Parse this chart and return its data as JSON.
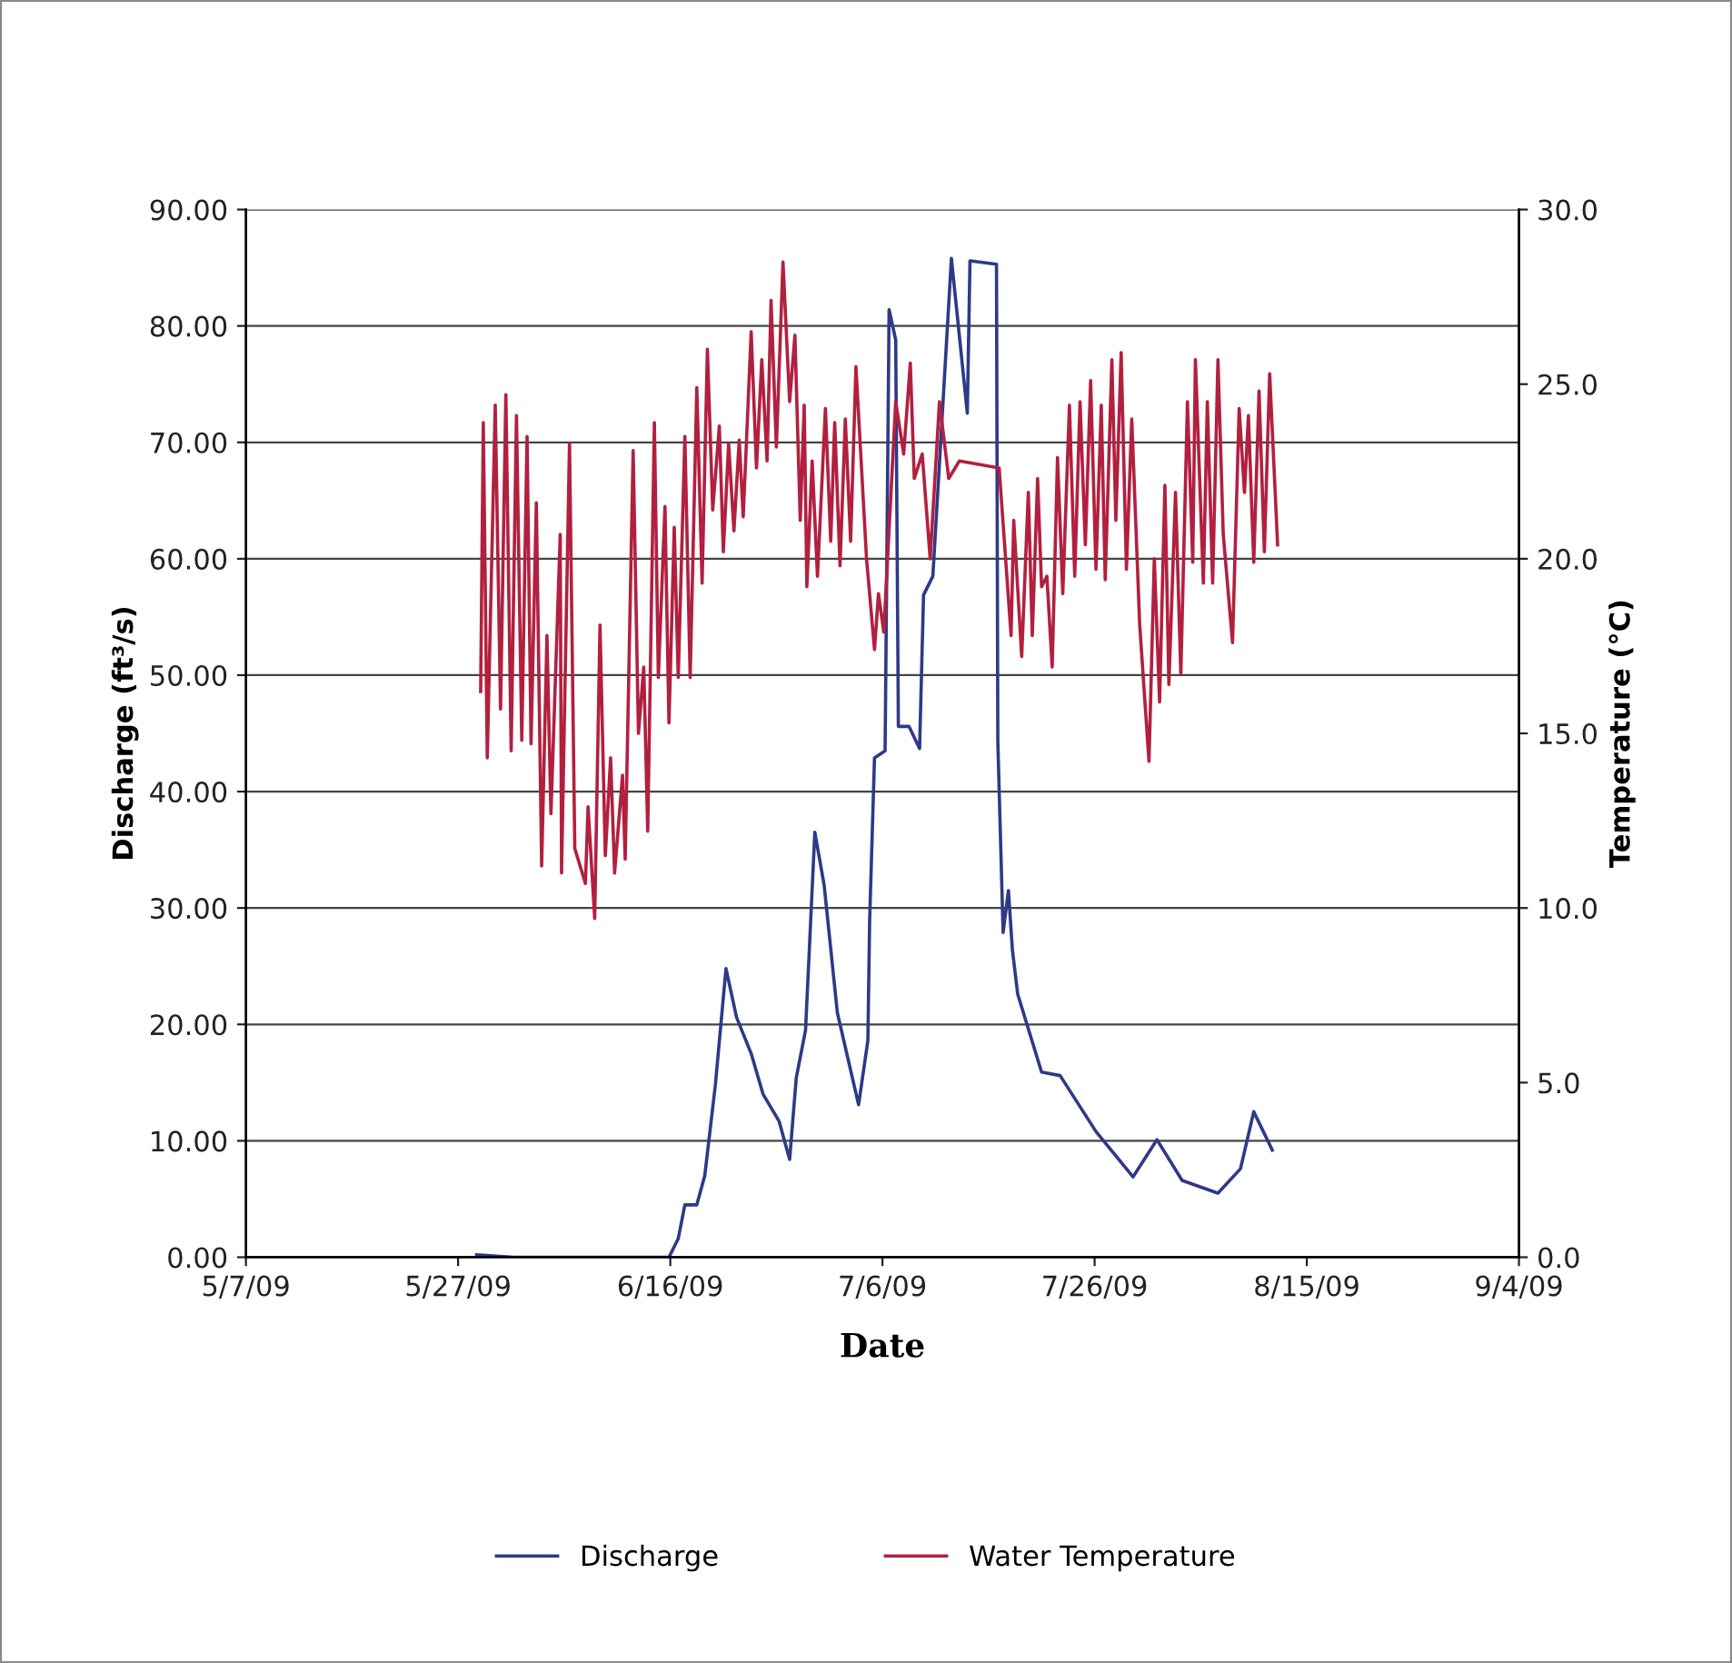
{
  "chart_data": {
    "type": "line",
    "xlabel": "Date",
    "ylabel": "Discharge (ft³/s)",
    "y2label": "Temperature (°C)",
    "xlim": [
      "2009-05-07",
      "2009-09-04"
    ],
    "xticks": [
      {
        "value": "2009-05-07",
        "label": "5/7/09"
      },
      {
        "value": "2009-05-27",
        "label": "5/27/09"
      },
      {
        "value": "2009-06-16",
        "label": "6/16/09"
      },
      {
        "value": "2009-07-06",
        "label": "7/6/09"
      },
      {
        "value": "2009-07-26",
        "label": "7/26/09"
      },
      {
        "value": "2009-08-15",
        "label": "8/15/09"
      },
      {
        "value": "2009-09-04",
        "label": "9/4/09"
      }
    ],
    "ylim": [
      0,
      90
    ],
    "yticks": [
      {
        "value": 0,
        "label": "0.00"
      },
      {
        "value": 10,
        "label": "10.00"
      },
      {
        "value": 20,
        "label": "20.00"
      },
      {
        "value": 30,
        "label": "30.00"
      },
      {
        "value": 40,
        "label": "40.00"
      },
      {
        "value": 50,
        "label": "50.00"
      },
      {
        "value": 60,
        "label": "60.00"
      },
      {
        "value": 70,
        "label": "70.00"
      },
      {
        "value": 80,
        "label": "80.00"
      },
      {
        "value": 90,
        "label": "90.00"
      }
    ],
    "y2lim": [
      0,
      30
    ],
    "y2ticks": [
      {
        "value": 0,
        "label": "0.0"
      },
      {
        "value": 5,
        "label": "5.0"
      },
      {
        "value": 10,
        "label": "10.0"
      },
      {
        "value": 15,
        "label": "15.0"
      },
      {
        "value": 20,
        "label": "20.0"
      },
      {
        "value": 25,
        "label": "25.0"
      },
      {
        "value": 30,
        "label": "30.0"
      }
    ],
    "grid": "y",
    "legend": "bottom",
    "marker": "none",
    "line_style": "solid",
    "series": [
      {
        "name": "Discharge",
        "color": "#2e3a87",
        "x": [
          "2009-05-28T18:00",
          "2009-06-01T06:00",
          "2009-06-15T21:00",
          "2009-06-16T18:00",
          "2009-06-17T09:00",
          "2009-06-18T12:00",
          "2009-06-19T06:00",
          "2009-06-20T06:00",
          "2009-06-21T06:00",
          "2009-06-22T06:00",
          "2009-06-23T15:00",
          "2009-06-24T18:00",
          "2009-06-26T06:00",
          "2009-06-27T06:00",
          "2009-06-27T21:00",
          "2009-06-28T18:00",
          "2009-06-29T15:00",
          "2009-06-30T12:00",
          "2009-07-01T18:00",
          "2009-07-03T18:00",
          "2009-07-04T15:00",
          "2009-07-04T19:00",
          "2009-07-05T06:00",
          "2009-07-06T06:00",
          "2009-07-06T15:00",
          "2009-07-07T06:00",
          "2009-07-07T12:00",
          "2009-07-08T12:00",
          "2009-07-09T12:00",
          "2009-07-09T21:00",
          "2009-07-10T18:00",
          "2009-07-12T12:00",
          "2009-07-14T00:00",
          "2009-07-14T06:00",
          "2009-07-16T18:00",
          "2009-07-16T21:00",
          "2009-07-17T09:00",
          "2009-07-17T21:00",
          "2009-07-18T06:00",
          "2009-07-18T18:00",
          "2009-07-21T00:00",
          "2009-07-22T18:00",
          "2009-07-26T03:00",
          "2009-07-29T15:00",
          "2009-07-31T21:00",
          "2009-08-03T06:00",
          "2009-08-06T15:00",
          "2009-08-08T18:00",
          "2009-08-10T00:00",
          "2009-08-11T18:00"
        ],
        "values": [
          0.2,
          0,
          0,
          1.6,
          4.5,
          4.5,
          7.0,
          14.8,
          24.8,
          20.6,
          17.5,
          14.0,
          11.7,
          8.4,
          15.4,
          19.5,
          36.5,
          32,
          21,
          13.1,
          18.6,
          28.9,
          42.9,
          43.5,
          81.4,
          78.8,
          45.6,
          45.6,
          43.7,
          56.9,
          58.5,
          85.8,
          72.5,
          85.6,
          85.3,
          44.3,
          27.9,
          31.5,
          26.4,
          22.6,
          15.9,
          15.6,
          10.8,
          6.9,
          10.1,
          6.6,
          5.5,
          7.6,
          12.5,
          9.2
        ]
      },
      {
        "name": "Water Temperature",
        "color": "#b22040",
        "axis": "y2",
        "x": [
          "2009-05-29T03:00",
          "2009-05-29T09:00",
          "2009-05-29T18:00",
          "2009-05-30T12:00",
          "2009-05-31T00:00",
          "2009-05-31T12:00",
          "2009-06-01T00:00",
          "2009-06-01T12:00",
          "2009-06-02T00:00",
          "2009-06-02T12:00",
          "2009-06-02T21:00",
          "2009-06-03T09:00",
          "2009-06-03T21:00",
          "2009-06-04T09:00",
          "2009-06-04T18:00",
          "2009-06-05T15:00",
          "2009-06-05T18:00",
          "2009-06-06T12:00",
          "2009-06-07T00:00",
          "2009-06-08T00:00",
          "2009-06-08T06:00",
          "2009-06-08T21:00",
          "2009-06-09T09:00",
          "2009-06-09T21:00",
          "2009-06-10T09:00",
          "2009-06-10T18:00",
          "2009-06-11T12:00",
          "2009-06-11T18:00",
          "2009-06-12T12:00",
          "2009-06-13T00:00",
          "2009-06-13T12:00",
          "2009-06-13T21:00",
          "2009-06-14T12:00",
          "2009-06-14T21:00",
          "2009-06-15T12:00",
          "2009-06-15T21:00",
          "2009-06-16T09:00",
          "2009-06-16T18:00",
          "2009-06-17T09:00",
          "2009-06-17T21:00",
          "2009-06-18T12:00",
          "2009-06-19T00:00",
          "2009-06-19T12:00",
          "2009-06-20T00:00",
          "2009-06-20T15:00",
          "2009-06-21T00:00",
          "2009-06-21T12:00",
          "2009-06-22T00:00",
          "2009-06-22T12:00",
          "2009-06-22T21:00",
          "2009-06-23T15:00",
          "2009-06-24T03:00",
          "2009-06-24T15:00",
          "2009-06-25T03:00",
          "2009-06-25T12:00",
          "2009-06-26T00:00",
          "2009-06-26T15:00",
          "2009-06-27T06:00",
          "2009-06-27T18:00",
          "2009-06-28T06:00",
          "2009-06-28T15:00",
          "2009-06-28T21:00",
          "2009-06-29T09:00",
          "2009-06-29T21:00",
          "2009-06-30T15:00",
          "2009-07-01T03:00",
          "2009-07-01T12:00",
          "2009-07-02T00:00",
          "2009-07-02T12:00",
          "2009-07-03T00:00",
          "2009-07-03T12:00",
          "2009-07-04T12:00",
          "2009-07-05T06:00",
          "2009-07-05T15:00",
          "2009-07-06T03:00",
          "2009-07-07T06:00",
          "2009-07-08T00:00",
          "2009-07-08T15:00",
          "2009-07-09T00:00",
          "2009-07-09T18:00",
          "2009-07-10T12:00",
          "2009-07-11T09:00",
          "2009-07-12T06:00",
          "2009-07-13T06:00",
          "2009-07-17T00:00",
          "2009-07-18T03:00",
          "2009-07-18T09:00",
          "2009-07-19T03:00",
          "2009-07-19T18:00",
          "2009-07-20T03:00",
          "2009-07-20T15:00",
          "2009-07-21T00:00",
          "2009-07-21T12:00",
          "2009-07-22T00:00",
          "2009-07-22T12:00",
          "2009-07-23T00:00",
          "2009-07-23T15:00",
          "2009-07-24T03:00",
          "2009-07-24T15:00",
          "2009-07-25T03:00",
          "2009-07-25T15:00",
          "2009-07-26T03:00",
          "2009-07-26T15:00",
          "2009-07-27T00:00",
          "2009-07-27T15:00",
          "2009-07-28T00:00",
          "2009-07-28T12:00",
          "2009-07-29T00:00",
          "2009-07-29T12:00",
          "2009-07-30T06:00",
          "2009-07-31T03:00",
          "2009-07-31T15:00",
          "2009-08-01T03:00",
          "2009-08-01T15:00",
          "2009-08-02T00:00",
          "2009-08-02T15:00",
          "2009-08-03T03:00",
          "2009-08-03T18:00",
          "2009-08-04T06:00",
          "2009-08-04T12:00",
          "2009-08-05T06:00",
          "2009-08-05T15:00",
          "2009-08-06T03:00",
          "2009-08-06T15:00",
          "2009-08-07T03:00",
          "2009-08-08T00:00",
          "2009-08-08T15:00",
          "2009-08-09T03:00",
          "2009-08-09T12:00",
          "2009-08-10T00:00",
          "2009-08-10T12:00",
          "2009-08-11T00:00",
          "2009-08-11T12:00",
          "2009-08-12T06:00"
        ],
        "values": [
          16.2,
          23.9,
          14.3,
          24.4,
          15.7,
          24.7,
          14.5,
          24.1,
          14.8,
          23.5,
          14.7,
          21.6,
          11.2,
          17.8,
          12.7,
          20.7,
          11.0,
          23.3,
          11.7,
          10.7,
          12.9,
          9.7,
          18.1,
          11.5,
          14.3,
          11.0,
          13.8,
          11.4,
          23.1,
          15.0,
          16.9,
          12.2,
          23.9,
          16.6,
          21.5,
          15.3,
          20.9,
          16.6,
          23.5,
          16.6,
          24.9,
          19.3,
          26.0,
          21.4,
          23.8,
          20.2,
          23.3,
          20.8,
          23.4,
          21.2,
          26.5,
          22.6,
          25.7,
          22.8,
          27.4,
          23.2,
          28.5,
          24.5,
          26.4,
          21.1,
          24.4,
          19.2,
          22.8,
          19.5,
          24.3,
          20.5,
          23.9,
          19.8,
          24.0,
          20.5,
          25.5,
          20.0,
          17.4,
          19.0,
          17.9,
          24.5,
          23.0,
          25.6,
          22.3,
          23.0,
          20.0,
          24.5,
          22.3,
          22.8,
          22.6,
          17.8,
          21.1,
          17.2,
          21.9,
          17.8,
          22.3,
          19.2,
          19.5,
          16.9,
          22.9,
          19.0,
          24.4,
          19.5,
          24.5,
          20.4,
          25.1,
          19.7,
          24.4,
          19.4,
          25.7,
          21.1,
          25.9,
          19.7,
          24.0,
          18.1,
          14.2,
          20.0,
          15.9,
          22.1,
          16.4,
          21.9,
          16.7,
          24.5,
          19.9,
          25.7,
          19.3,
          24.5,
          19.3,
          25.7,
          20.7,
          17.6,
          24.3,
          21.9,
          24.1,
          19.9,
          24.8,
          20.2,
          25.3,
          20.4
        ]
      }
    ]
  }
}
